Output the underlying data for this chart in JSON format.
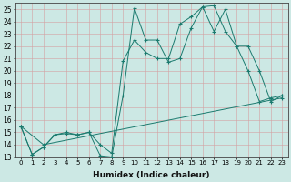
{
  "xlabel": "Humidex (Indice chaleur)",
  "background_color": "#cce8e4",
  "grid_color": "#d4a0a0",
  "line_color": "#1a7a6e",
  "xlim": [
    -0.5,
    23.5
  ],
  "ylim": [
    13,
    25.5
  ],
  "yticks": [
    13,
    14,
    15,
    16,
    17,
    18,
    19,
    20,
    21,
    22,
    23,
    24,
    25
  ],
  "xticks": [
    0,
    1,
    2,
    3,
    4,
    5,
    6,
    7,
    8,
    9,
    10,
    11,
    12,
    13,
    14,
    15,
    16,
    17,
    18,
    19,
    20,
    21,
    22,
    23
  ],
  "series": [
    {
      "x": [
        0,
        1,
        2,
        3,
        4,
        5,
        6,
        7,
        8,
        9,
        10,
        11,
        12,
        13,
        14,
        15,
        16,
        17,
        18,
        19,
        20,
        21,
        22,
        23
      ],
      "y": [
        15.5,
        13.2,
        13.8,
        14.8,
        15.0,
        14.8,
        15.0,
        13.1,
        13.0,
        18.0,
        25.1,
        22.5,
        22.5,
        20.7,
        21.0,
        23.5,
        25.2,
        25.3,
        23.2,
        22.0,
        20.0,
        17.5,
        17.8,
        18.0
      ]
    },
    {
      "x": [
        0,
        1,
        2,
        3,
        4,
        5,
        6,
        7,
        8,
        9,
        10,
        11,
        12,
        13,
        14,
        15,
        16,
        17,
        18,
        19,
        20,
        21,
        22,
        23
      ],
      "y": [
        15.5,
        13.2,
        13.8,
        14.8,
        14.9,
        14.8,
        15.0,
        14.0,
        13.3,
        20.8,
        22.5,
        21.5,
        21.0,
        21.0,
        23.8,
        24.4,
        25.2,
        23.2,
        25.0,
        22.0,
        22.0,
        20.0,
        17.5,
        18.0
      ]
    },
    {
      "x": [
        0,
        2,
        23
      ],
      "y": [
        15.5,
        14.0,
        17.8
      ]
    }
  ]
}
